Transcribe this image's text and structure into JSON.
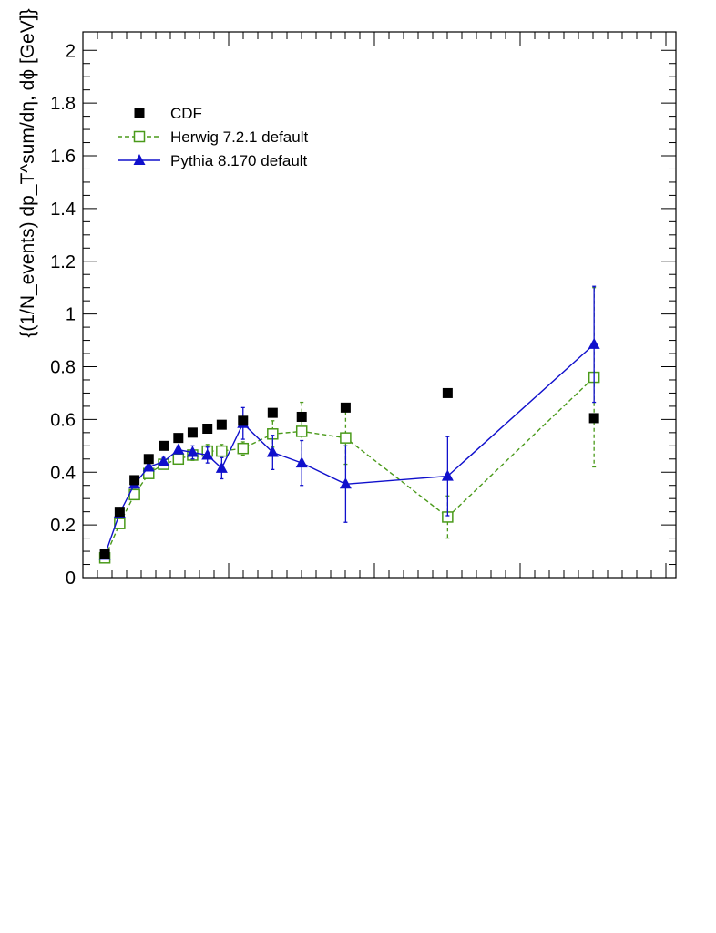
{
  "chart_data": {
    "type": "scatter",
    "ylabel": "{(1/N_events) dp_T^sum/dη, dϕ [GeV]}",
    "ylim": [
      0,
      2.07
    ],
    "xlim": [
      0,
      1
    ],
    "y_ticks": [
      "0",
      "0.2",
      "0.4",
      "0.6",
      "0.8",
      "1",
      "1.2",
      "1.4",
      "1.6",
      "1.8",
      "2"
    ],
    "grid": false,
    "legend_position": "top-left",
    "series": [
      {
        "name": "CDF",
        "color": "#000000",
        "marker": "filled-square",
        "line": "none",
        "x": [
          0.037,
          0.062,
          0.087,
          0.111,
          0.136,
          0.161,
          0.185,
          0.21,
          0.234,
          0.27,
          0.32,
          0.369,
          0.443,
          0.615,
          0.862
        ],
        "y": [
          0.09,
          0.25,
          0.37,
          0.45,
          0.5,
          0.53,
          0.55,
          0.565,
          0.58,
          0.595,
          0.625,
          0.61,
          0.645,
          0.7,
          0.605
        ]
      },
      {
        "name": "Herwig 7.2.1 default",
        "color": "#4a9a1a",
        "marker": "open-square",
        "line": "dashed",
        "x": [
          0.037,
          0.062,
          0.087,
          0.111,
          0.136,
          0.161,
          0.185,
          0.21,
          0.234,
          0.27,
          0.32,
          0.369,
          0.443,
          0.615,
          0.862
        ],
        "y": [
          0.075,
          0.205,
          0.315,
          0.395,
          0.43,
          0.45,
          0.465,
          0.48,
          0.48,
          0.49,
          0.545,
          0.555,
          0.53,
          0.23,
          0.76
        ],
        "yerr": [
          0.01,
          0.015,
          0.015,
          0.015,
          0.015,
          0.015,
          0.02,
          0.025,
          0.025,
          0.025,
          0.05,
          0.11,
          0.1,
          0.08,
          0.34
        ]
      },
      {
        "name": "Pythia 8.170 default",
        "color": "#1010cc",
        "marker": "filled-triangle",
        "line": "solid",
        "x": [
          0.037,
          0.062,
          0.087,
          0.111,
          0.136,
          0.161,
          0.185,
          0.21,
          0.234,
          0.27,
          0.32,
          0.369,
          0.443,
          0.615,
          0.862
        ],
        "y": [
          0.085,
          0.245,
          0.355,
          0.42,
          0.44,
          0.485,
          0.475,
          0.465,
          0.415,
          0.585,
          0.475,
          0.435,
          0.355,
          0.385,
          0.885
        ],
        "yerr": [
          0.01,
          0.015,
          0.015,
          0.015,
          0.015,
          0.015,
          0.025,
          0.03,
          0.04,
          0.06,
          0.065,
          0.085,
          0.145,
          0.15,
          0.22
        ]
      }
    ]
  }
}
